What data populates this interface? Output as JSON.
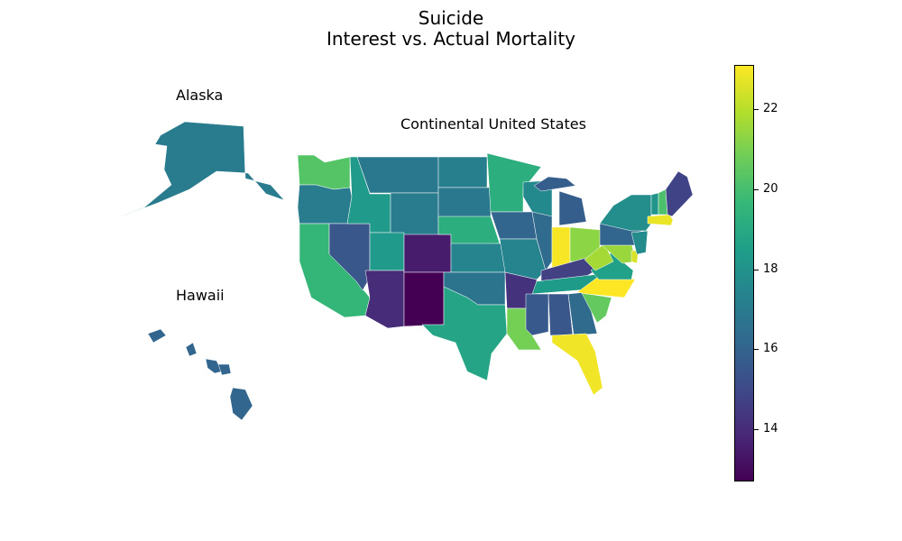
{
  "title_line1": "Suicide",
  "title_line2": "Interest vs. Actual Mortality",
  "labels": {
    "alaska": "Alaska",
    "hawaii": "Hawaii",
    "continental": "Continental United States"
  },
  "colorbar": {
    "colormap": "viridis",
    "min": 12.7,
    "max": 23.1,
    "ticks": [
      {
        "value": 14,
        "label": "14"
      },
      {
        "value": 16,
        "label": "16"
      },
      {
        "value": 18,
        "label": "18"
      },
      {
        "value": 20,
        "label": "20"
      },
      {
        "value": 22,
        "label": "22"
      }
    ]
  },
  "state_values": {
    "WA": 20.3,
    "OR": 17.0,
    "CA": 19.6,
    "NV": 15.5,
    "ID": 18.3,
    "MT": 16.9,
    "WY": 17.0,
    "UT": 18.3,
    "AZ": 14.0,
    "CO": 13.5,
    "NM": 12.7,
    "ND": 17.2,
    "SD": 16.9,
    "NE": 19.2,
    "KS": 17.4,
    "OK": 16.7,
    "TX": 18.8,
    "MN": 19.2,
    "IA": 16.1,
    "MO": 17.4,
    "AR": 14.2,
    "LA": 20.9,
    "WI": 17.6,
    "IL": 16.3,
    "MI": 15.8,
    "IN": 23.0,
    "OH": 21.3,
    "KY": 14.7,
    "TN": 18.4,
    "MS": 15.6,
    "AL": 15.5,
    "GA": 16.3,
    "FL": 22.9,
    "SC": 20.6,
    "NC": 23.1,
    "VA": 18.6,
    "WV": 21.7,
    "MD": 21.5,
    "DE": 22.5,
    "PA": 16.1,
    "NJ": 17.7,
    "NY": 17.8,
    "CT": 17.3,
    "RI": 17.6,
    "MA": 22.8,
    "VT": 18.1,
    "NH": 20.1,
    "ME": 14.8,
    "AK": 17.0,
    "HI": 16.1
  }
}
